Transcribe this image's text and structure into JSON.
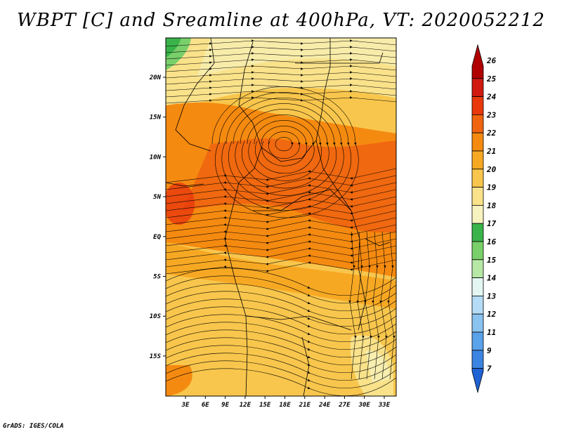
{
  "title": "WBPT [C] and Sreamline at 400hPa, VT: 2020052212",
  "footer": "GrADS: IGES/COLA",
  "map": {
    "lon_labels": [
      "3E",
      "6E",
      "9E",
      "12E",
      "15E",
      "18E",
      "21E",
      "24E",
      "27E",
      "30E",
      "33E"
    ],
    "lat_labels": [
      "20N",
      "15N",
      "10N",
      "5N",
      "EQ",
      "5S",
      "10S",
      "15S"
    ]
  },
  "colorbar": {
    "labels": [
      "26",
      "25",
      "24",
      "23",
      "22",
      "21",
      "20",
      "19",
      "18",
      "17",
      "16",
      "15",
      "14",
      "13",
      "12",
      "11",
      "9",
      "7"
    ],
    "colors": [
      "#b00000",
      "#d01a10",
      "#e8380c",
      "#f0640f",
      "#f58a10",
      "#f7a823",
      "#f8c64c",
      "#f9e28a",
      "#f7f3bf",
      "#3ab44a",
      "#79cf6a",
      "#b7e8a6",
      "#e4f6f2",
      "#b4dcf6",
      "#8ac2f0",
      "#5aa2ea",
      "#3c84e2",
      "#1e62d4"
    ]
  }
}
